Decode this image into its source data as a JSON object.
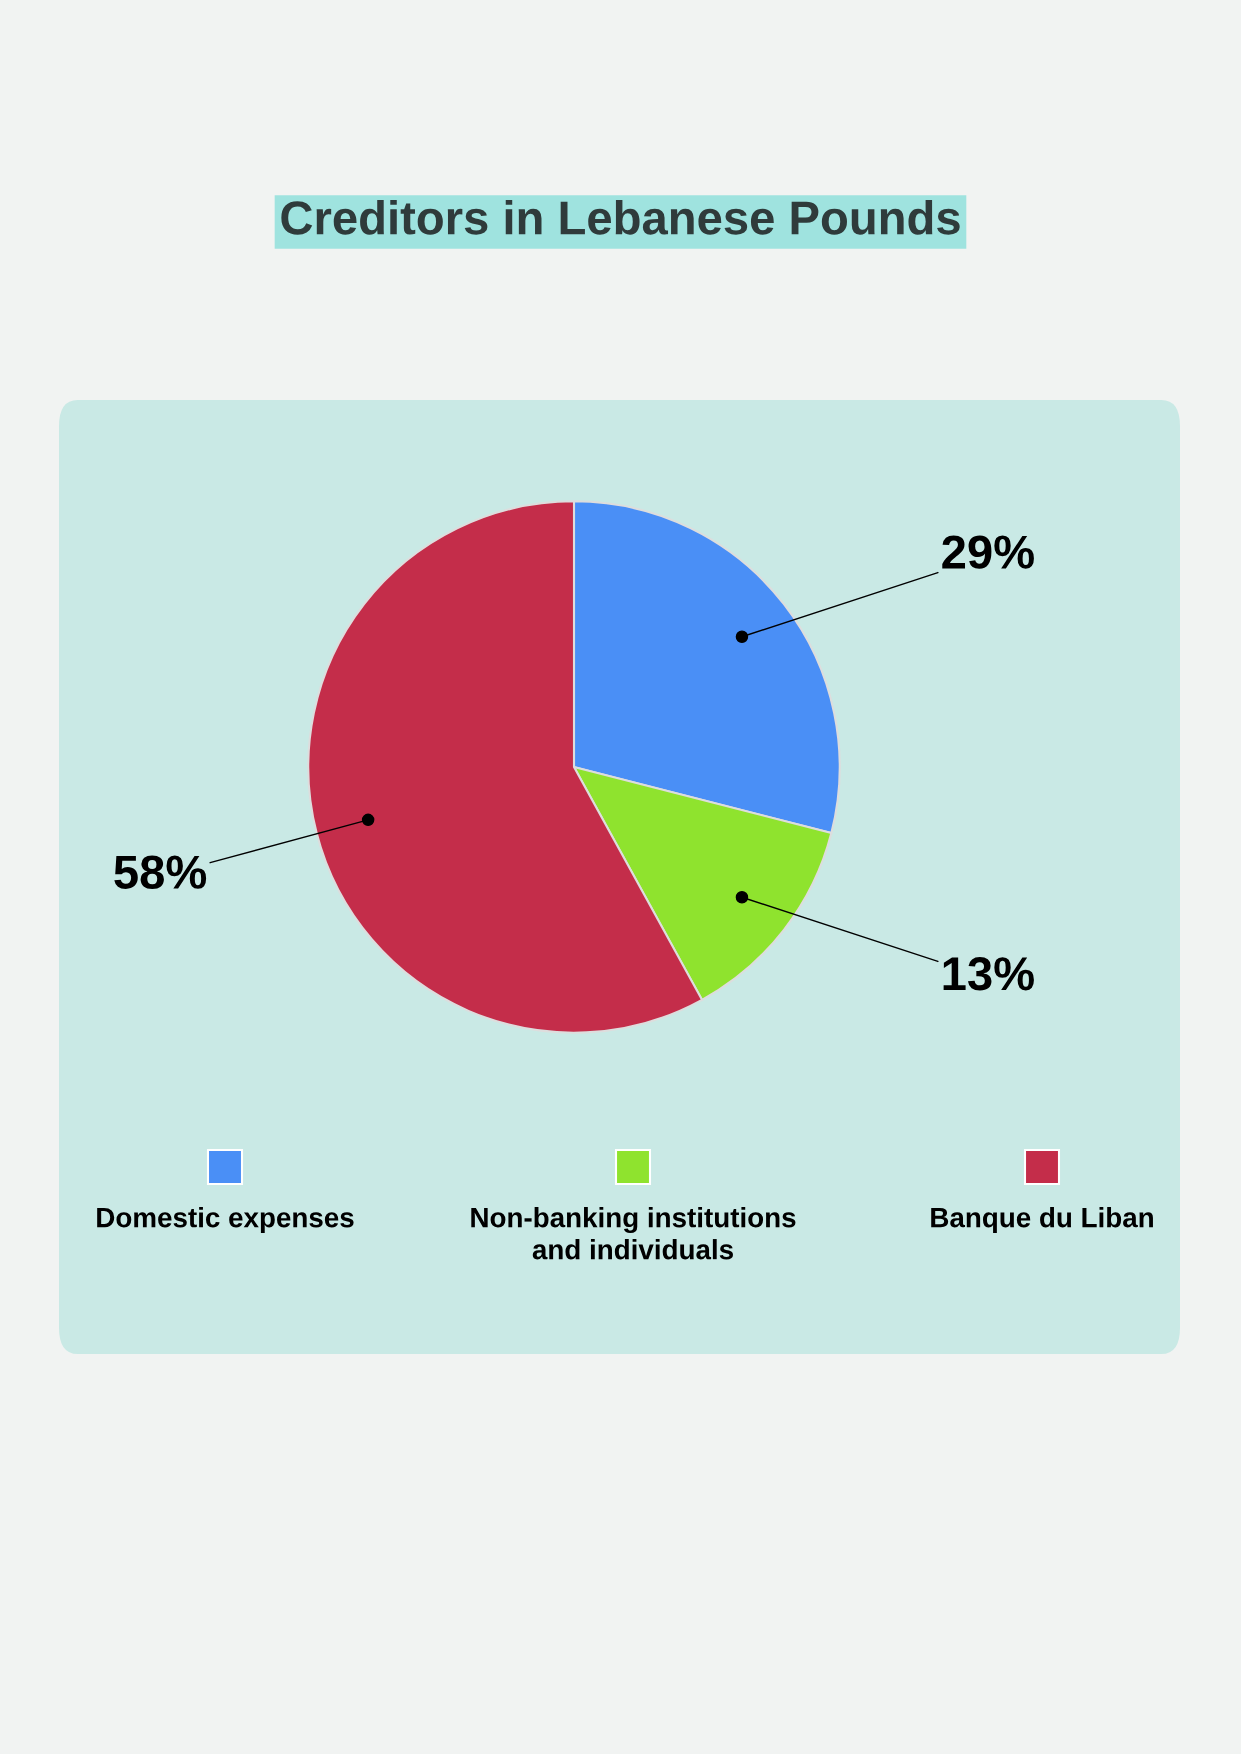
{
  "chart_data": {
    "type": "pie",
    "title": "Creditors in Lebanese Pounds",
    "categories": [
      "Domestic expenses",
      "Non-banking institutions and individuals",
      "Banque du Liban"
    ],
    "values": [
      29,
      13,
      58
    ],
    "colors": [
      "#4a8ff6",
      "#8fe32e",
      "#c42d4a"
    ],
    "value_labels": [
      "29%",
      "13%",
      "58%"
    ],
    "legend": "bottom"
  }
}
